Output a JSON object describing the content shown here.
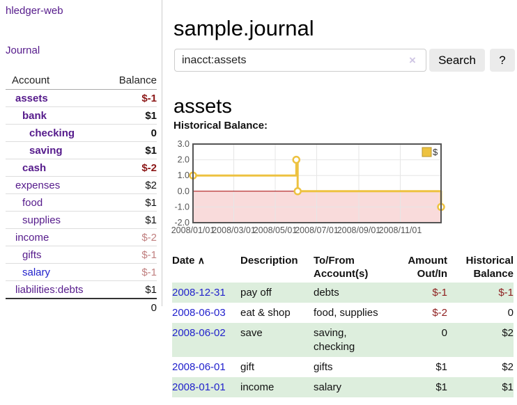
{
  "colors": {
    "link_purple": "#551a8b",
    "link_blue": "#2222cc",
    "negative_strong": "#8b1616",
    "negative_soft": "#c07f7f",
    "table_negative": "#8e1f1f",
    "row_green": "#ddeedd",
    "chart_line": "#edc240",
    "chart_negative_region": "#f9dbdb",
    "chart_zero_line": "#a40000"
  },
  "sidebar": {
    "brand": "hledger-web",
    "nav": {
      "journal": "Journal"
    },
    "table": {
      "account_header": "Account",
      "balance_header": "Balance"
    },
    "accounts": [
      {
        "name": "assets",
        "balance": "$-1"
      },
      {
        "name": "bank",
        "balance": "$1"
      },
      {
        "name": "checking",
        "balance": "0"
      },
      {
        "name": "saving",
        "balance": "$1"
      },
      {
        "name": "cash",
        "balance": "$-2"
      },
      {
        "name": "expenses",
        "balance": "$2"
      },
      {
        "name": "food",
        "balance": "$1"
      },
      {
        "name": "supplies",
        "balance": "$1"
      },
      {
        "name": "income",
        "balance": "$-2"
      },
      {
        "name": "gifts",
        "balance": "$-1"
      },
      {
        "name": "salary",
        "balance": "$-1"
      },
      {
        "name": "liabilities:debts",
        "balance": "$1"
      }
    ],
    "total": "0"
  },
  "page": {
    "title": "sample.journal",
    "account_heading": "assets",
    "chart_label": "Historical Balance:"
  },
  "search": {
    "value": "inacct:assets",
    "clear_icon": "×",
    "search_button": "Search",
    "help_button": "?"
  },
  "chart_data": {
    "type": "line",
    "title": "Historical Balance:",
    "style": "steps",
    "series": [
      {
        "name": "$",
        "color": "#edc240",
        "points": [
          [
            "2008-01-01",
            1
          ],
          [
            "2008-06-01",
            2
          ],
          [
            "2008-06-03",
            0
          ],
          [
            "2008-12-31",
            -1
          ]
        ]
      }
    ],
    "x_range": [
      "2008-01-01",
      "2008-12-31"
    ],
    "ylim": [
      -2,
      3
    ],
    "y_ticks": [
      3,
      2,
      1,
      0,
      -1,
      -2
    ],
    "x_ticks": [
      "2008/01/01",
      "2008/03/01",
      "2008/05/01",
      "2008/07/01",
      "2008/09/01",
      "2008/11/01"
    ],
    "grid": true,
    "legend": {
      "label": "$",
      "position": "top-right"
    },
    "negative_region_color": "#f9dbdb",
    "zero_line_color": "#a40000"
  },
  "register": {
    "columns": {
      "date": "Date",
      "description": "Description",
      "accounts": "To/From Account(s)",
      "amount": "Amount Out/In",
      "balance": "Historical Balance"
    },
    "sort_icon": "∧",
    "rows": [
      {
        "date": "2008-12-31",
        "description": "pay off",
        "accounts": "debts",
        "amount": "$-1",
        "balance": "$-1"
      },
      {
        "date": "2008-06-03",
        "description": "eat & shop",
        "accounts": "food, supplies",
        "amount": "$-2",
        "balance": "0"
      },
      {
        "date": "2008-06-02",
        "description": "save",
        "accounts": "saving, checking",
        "amount": "0",
        "balance": "$2"
      },
      {
        "date": "2008-06-01",
        "description": "gift",
        "accounts": "gifts",
        "amount": "$1",
        "balance": "$2"
      },
      {
        "date": "2008-01-01",
        "description": "income",
        "accounts": "salary",
        "amount": "$1",
        "balance": "$1"
      }
    ]
  }
}
